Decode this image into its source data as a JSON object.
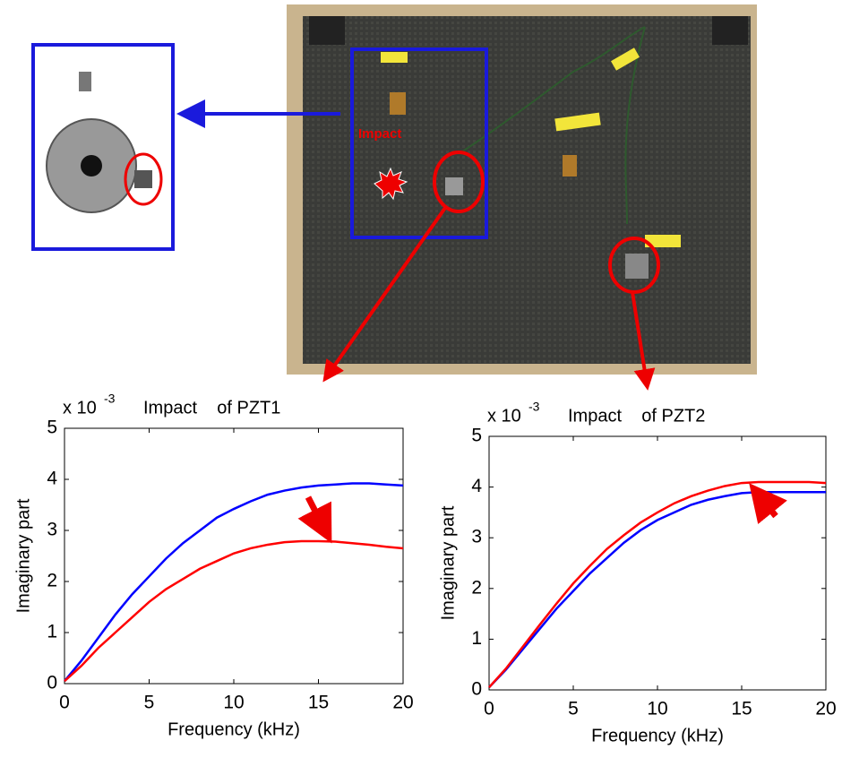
{
  "photo": {
    "impact_label": "Impact"
  },
  "chart_data": [
    {
      "type": "line",
      "title": "Impact    of PZT1",
      "multiplier": "x 10",
      "exponent": "-3",
      "x_label": "Frequency (kHz)",
      "y_label": "Imaginary part",
      "x": [
        0,
        1,
        2,
        3,
        4,
        5,
        6,
        7,
        8,
        9,
        10,
        11,
        12,
        13,
        14,
        15,
        16,
        17,
        18,
        19,
        20
      ],
      "series": [
        {
          "color": "#0000ff",
          "values": [
            0.05,
            0.45,
            0.9,
            1.35,
            1.75,
            2.1,
            2.45,
            2.75,
            3.0,
            3.25,
            3.42,
            3.57,
            3.7,
            3.78,
            3.84,
            3.88,
            3.9,
            3.92,
            3.92,
            3.9,
            3.88
          ]
        },
        {
          "color": "#ff0000",
          "values": [
            0.05,
            0.35,
            0.7,
            1.0,
            1.3,
            1.6,
            1.85,
            2.05,
            2.25,
            2.4,
            2.55,
            2.65,
            2.72,
            2.77,
            2.79,
            2.79,
            2.78,
            2.75,
            2.72,
            2.68,
            2.65
          ]
        }
      ],
      "xlim": [
        0,
        20
      ],
      "xticks": [
        0,
        5,
        10,
        15,
        20
      ],
      "ylim": [
        0,
        5
      ],
      "yticks": [
        0,
        1,
        2,
        3,
        4,
        5
      ]
    },
    {
      "type": "line",
      "title": "Impact    of PZT2",
      "multiplier": "x 10",
      "exponent": "-3",
      "x_label": "Frequency (kHz)",
      "y_label": "Imaginary part",
      "x": [
        0,
        1,
        2,
        3,
        4,
        5,
        6,
        7,
        8,
        9,
        10,
        11,
        12,
        13,
        14,
        15,
        16,
        17,
        18,
        19,
        20
      ],
      "series": [
        {
          "color": "#0000ff",
          "values": [
            0.05,
            0.4,
            0.8,
            1.2,
            1.6,
            1.95,
            2.3,
            2.6,
            2.9,
            3.15,
            3.35,
            3.5,
            3.65,
            3.75,
            3.82,
            3.88,
            3.9,
            3.9,
            3.9,
            3.9,
            3.9
          ]
        },
        {
          "color": "#ff0000",
          "values": [
            0.05,
            0.42,
            0.85,
            1.28,
            1.7,
            2.1,
            2.45,
            2.78,
            3.05,
            3.3,
            3.5,
            3.68,
            3.82,
            3.93,
            4.02,
            4.08,
            4.1,
            4.1,
            4.1,
            4.1,
            4.08
          ]
        }
      ],
      "xlim": [
        0,
        20
      ],
      "xticks": [
        0,
        5,
        10,
        15,
        20
      ],
      "ylim": [
        0,
        5
      ],
      "yticks": [
        0,
        1,
        2,
        3,
        4,
        5
      ]
    }
  ]
}
